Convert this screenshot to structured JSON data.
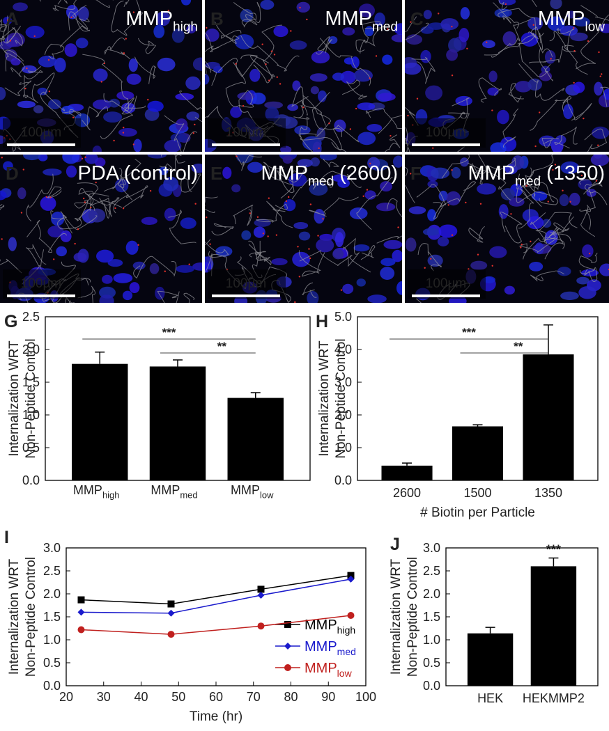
{
  "image_panels": [
    {
      "letter": "A",
      "label": "MMP",
      "sub": "high",
      "scale_bar": "100µm"
    },
    {
      "letter": "B",
      "label": "MMP",
      "sub": "med",
      "scale_bar": "100µm"
    },
    {
      "letter": "C",
      "label": "MMP",
      "sub": "low",
      "scale_bar": "100µm"
    },
    {
      "letter": "D",
      "label": "PDA (control)",
      "scale_bar": "100µm"
    },
    {
      "letter": "E",
      "label": "MMP",
      "sub": "med",
      "suffix": " (2600)",
      "scale_bar": "100µm"
    },
    {
      "letter": "F",
      "label": "MMP",
      "sub": "med",
      "suffix": " (1350)",
      "scale_bar": "100µm"
    }
  ],
  "chart_data": [
    {
      "type": "bar",
      "panel": "G",
      "ylabel": [
        "Internalization WRT",
        "Non-Peptide Control"
      ],
      "categories": [
        {
          "base": "MMP",
          "sub": "high"
        },
        {
          "base": "MMP",
          "sub": "med"
        },
        {
          "base": "MMP",
          "sub": "low"
        }
      ],
      "values": [
        1.78,
        1.74,
        1.26
      ],
      "errors": [
        0.18,
        0.1,
        0.08
      ],
      "color": "#000000",
      "ylim": [
        0,
        2.5
      ],
      "yticks": [
        {
          "value": 0,
          "label": "0.0"
        },
        {
          "value": 0.5,
          "label": "0.5"
        },
        {
          "value": 1,
          "label": "1.0"
        },
        {
          "value": 1.5,
          "label": "1.5"
        },
        {
          "value": 2,
          "label": "2.0"
        },
        {
          "value": 2.5,
          "label": "2.5"
        }
      ],
      "annotations": [
        "***",
        "**"
      ]
    },
    {
      "type": "bar",
      "panel": "H",
      "ylabel": [
        "Internalization WRT",
        "Non-Peptide Control"
      ],
      "xlabel": "# Biotin per Particle",
      "categories": [
        "2600",
        "1500",
        "1350"
      ],
      "values": [
        0.45,
        1.65,
        3.85
      ],
      "errors": [
        0.08,
        0.05,
        0.9
      ],
      "color": "#000000",
      "ylim": [
        0,
        5
      ],
      "yticks": [
        {
          "value": 0,
          "label": "0.0"
        },
        {
          "value": 1,
          "label": "1.0"
        },
        {
          "value": 2,
          "label": "2.0"
        },
        {
          "value": 3,
          "label": "3.0"
        },
        {
          "value": 4,
          "label": "4.0"
        },
        {
          "value": 5,
          "label": "5.0"
        }
      ],
      "annotations": [
        "***",
        "**"
      ]
    },
    {
      "type": "line",
      "panel": "I",
      "ylabel": [
        "Internalization WRT",
        "Non-Peptide Control"
      ],
      "xlabel": "Time (hr)",
      "x": [
        24,
        48,
        72,
        96
      ],
      "series": [
        {
          "name": "MMP",
          "subscript": "high",
          "color": "#000000",
          "marker": "square",
          "values": [
            1.87,
            1.78,
            2.1,
            2.4
          ]
        },
        {
          "name": "MMP",
          "subscript": "med",
          "color": "#1a1acc",
          "marker": "diamond",
          "values": [
            1.6,
            1.58,
            1.97,
            2.32
          ]
        },
        {
          "name": "MMP",
          "subscript": "low",
          "color": "#c0201e",
          "marker": "circle",
          "values": [
            1.22,
            1.12,
            1.3,
            1.53
          ]
        }
      ],
      "xlim": [
        20,
        100
      ],
      "xticks": [
        20,
        30,
        40,
        50,
        60,
        70,
        80,
        90,
        100
      ],
      "ylim": [
        0,
        3
      ],
      "yticks": [
        {
          "value": 0,
          "label": "0.0"
        },
        {
          "value": 0.5,
          "label": "0.5"
        },
        {
          "value": 1,
          "label": "1.0"
        },
        {
          "value": 1.5,
          "label": "1.5"
        },
        {
          "value": 2,
          "label": "2.0"
        },
        {
          "value": 2.5,
          "label": "2.5"
        },
        {
          "value": 3,
          "label": "3.0"
        }
      ],
      "legend": "lower right"
    },
    {
      "type": "bar",
      "panel": "J",
      "ylabel": [
        "Internalization WRT",
        "Non-Peptide Control"
      ],
      "categories": [
        "HEK",
        "HEKMMP2"
      ],
      "values": [
        1.14,
        2.6
      ],
      "errors": [
        0.13,
        0.18
      ],
      "color": "#000000",
      "ylim": [
        0,
        3
      ],
      "yticks": [
        {
          "value": 0,
          "label": "0.0"
        },
        {
          "value": 0.5,
          "label": "0.5"
        },
        {
          "value": 1,
          "label": "1.0"
        },
        {
          "value": 1.5,
          "label": "1.5"
        },
        {
          "value": 2,
          "label": "2.0"
        },
        {
          "value": 2.5,
          "label": "2.5"
        },
        {
          "value": 3,
          "label": "3.0"
        }
      ],
      "annotations": [
        "***"
      ]
    }
  ]
}
